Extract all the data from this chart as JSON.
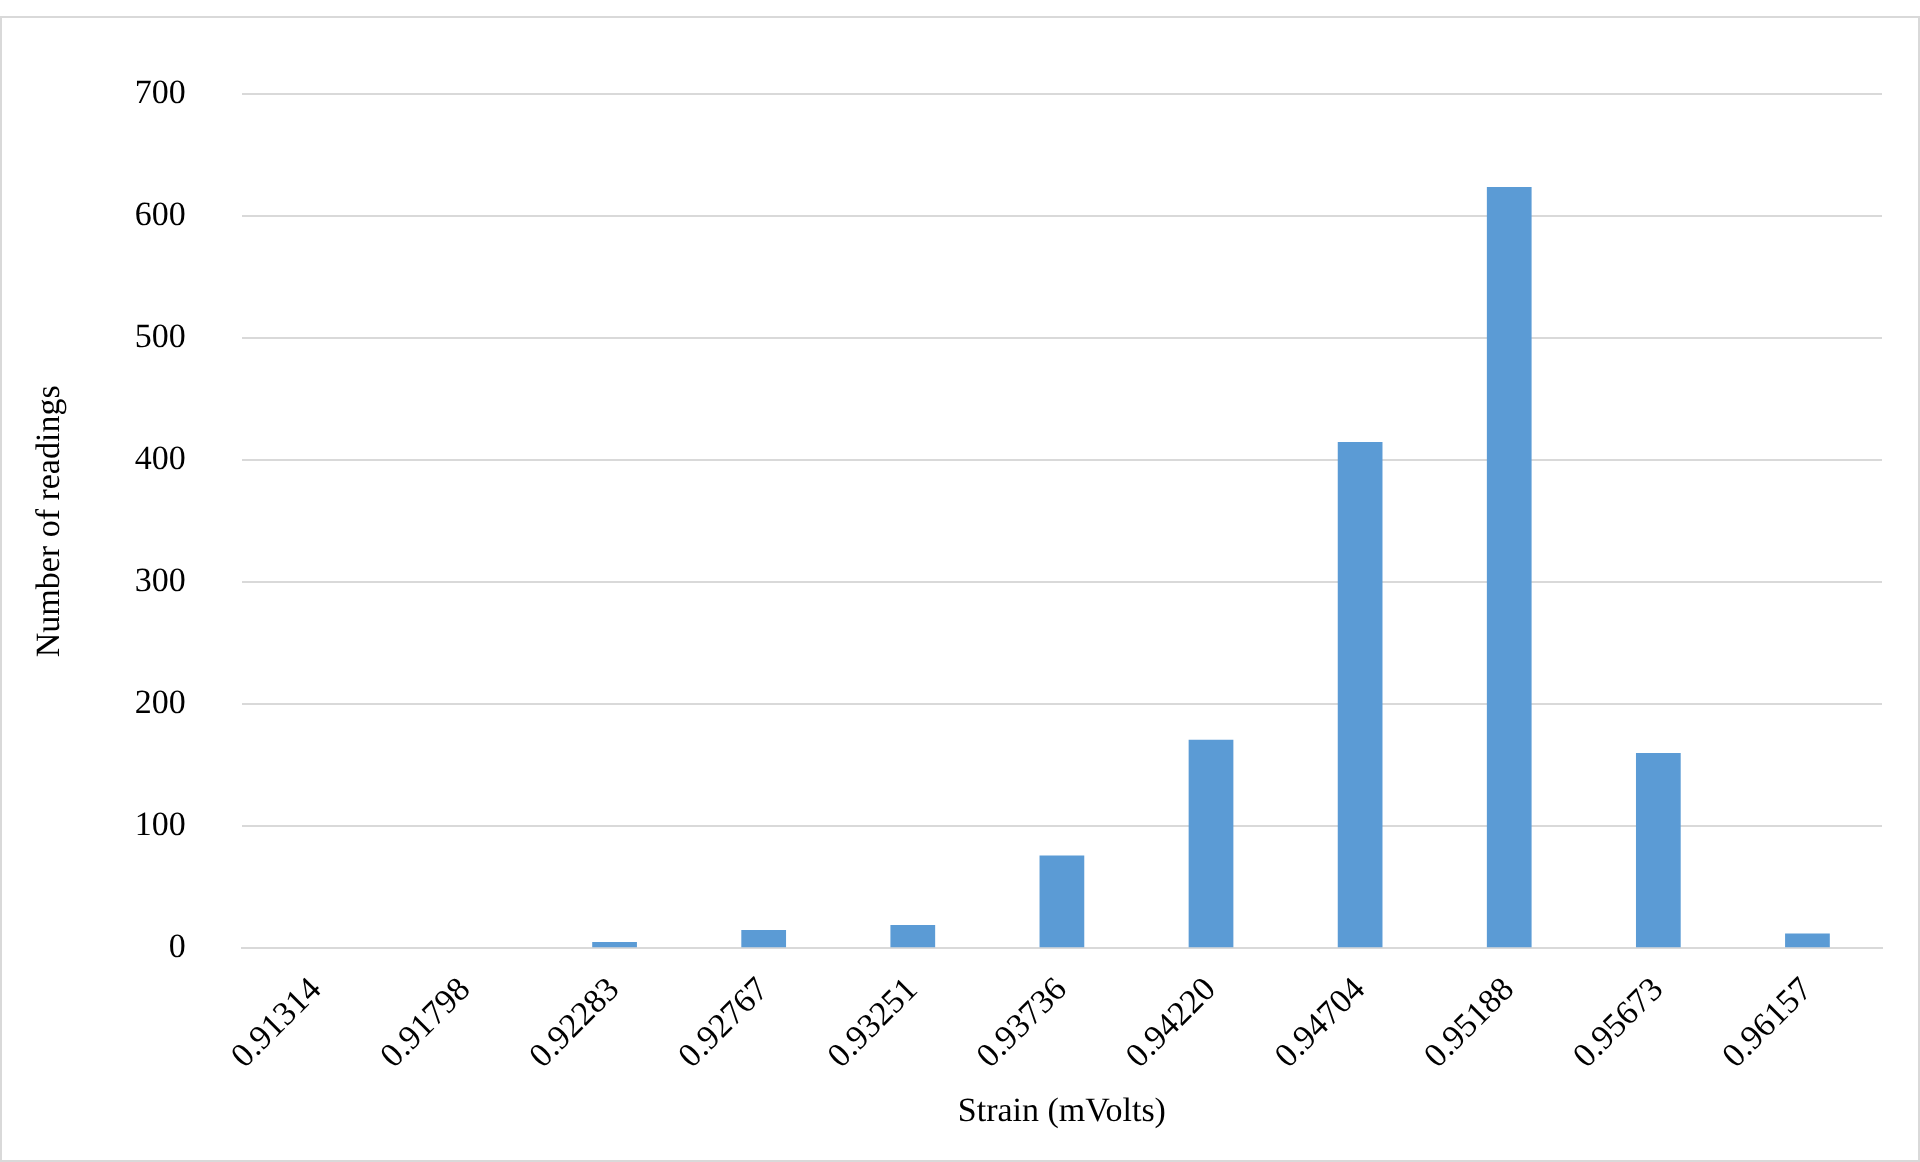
{
  "chart_data": {
    "type": "bar",
    "xlabel": "Strain (mVolts)",
    "ylabel": "Number of readings",
    "categories": [
      "0.91314",
      "0.91798",
      "0.92283",
      "0.92767",
      "0.93251",
      "0.93736",
      "0.94220",
      "0.94704",
      "0.95188",
      "0.95673",
      "0.96157"
    ],
    "values": [
      0,
      0,
      5,
      15,
      19,
      76,
      171,
      415,
      624,
      160,
      12
    ],
    "color": "#5b9bd5",
    "ylim": [
      0,
      700
    ],
    "yticks": [
      0,
      100,
      200,
      300,
      400,
      500,
      600,
      700
    ],
    "grid": "y",
    "legend": false
  }
}
